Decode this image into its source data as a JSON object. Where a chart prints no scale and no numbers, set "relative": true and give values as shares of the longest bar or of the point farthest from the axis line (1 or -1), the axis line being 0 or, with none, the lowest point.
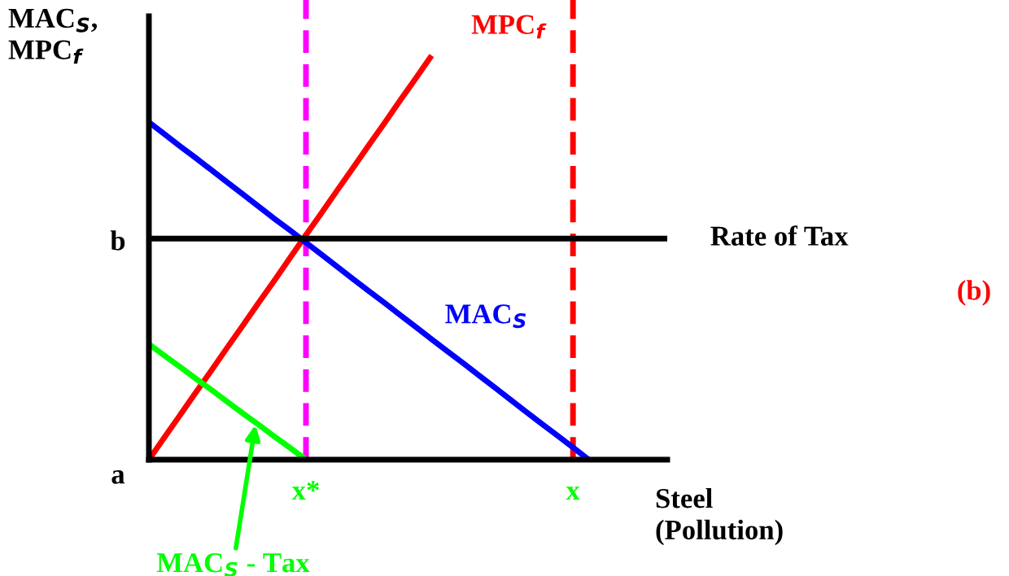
{
  "chart_data": {
    "type": "line",
    "relative": true,
    "xlabel": "Steel\n(Pollution)",
    "ylabel": "MAC$_{S}$,\nMPC$_{f}$",
    "categories": [
      null,
      null,
      null,
      null,
      null,
      null,
      null,
      null,
      null,
      null,
      "x*",
      null,
      null,
      null,
      null,
      null,
      null,
      null,
      null,
      null,
      null,
      null,
      null,
      null,
      null,
      null,
      null,
      "x",
      null,
      null,
      null,
      null,
      null,
      null
    ],
    "series": [
      {
        "name": "MPC$_{f}$",
        "color": "#ff0000",
        "values": [
          0,
          0.056,
          0.111,
          0.167,
          0.222,
          0.278,
          0.333,
          0.389,
          0.444,
          0.5,
          0.556,
          0.611,
          0.667,
          0.722,
          0.778,
          0.833,
          0.889,
          0.944,
          1,
          null,
          null,
          null,
          null,
          null,
          null,
          null,
          null,
          null,
          null,
          null,
          null,
          null,
          null,
          null
        ]
      },
      {
        "name": "MAC$_{S}$",
        "color": "#0000ff",
        "values": [
          0.835,
          0.805,
          0.775,
          0.746,
          0.716,
          0.686,
          0.656,
          0.626,
          0.596,
          0.567,
          0.537,
          0.507,
          0.477,
          0.447,
          0.417,
          0.388,
          0.358,
          0.328,
          0.298,
          0.268,
          0.239,
          0.209,
          0.179,
          0.149,
          0.119,
          0.089,
          0.06,
          0.03,
          0,
          null,
          null,
          null,
          null,
          null
        ]
      },
      {
        "name": "Rate of Tax",
        "color": "#000000",
        "values": [
          0.547,
          0.547,
          0.547,
          0.547,
          0.547,
          0.547,
          0.547,
          0.547,
          0.547,
          0.547,
          0.547,
          0.547,
          0.547,
          0.547,
          0.547,
          0.547,
          0.547,
          0.547,
          0.547,
          0.547,
          0.547,
          0.547,
          0.547,
          0.547,
          0.547,
          0.547,
          0.547,
          0.547,
          0.547,
          0.547,
          0.547,
          0.547,
          0.547,
          0.547
        ]
      },
      {
        "name": "MAC$_{S}$ - Tax",
        "color": "#00ff00",
        "values": [
          0.286,
          0.257,
          0.229,
          0.2,
          0.172,
          0.143,
          0.114,
          0.086,
          0.057,
          0.029,
          0,
          null,
          null,
          null,
          null,
          null,
          null,
          null,
          null,
          null,
          null,
          null,
          null,
          null,
          null,
          null,
          null,
          null,
          null,
          null,
          null,
          null,
          null,
          null
        ]
      }
    ],
    "ref_lines": [
      {
        "axis": "x",
        "value": "x*",
        "color": "#ff00ff",
        "line_style": "dashed"
      },
      {
        "axis": "x",
        "value": "x",
        "color": "#ff0000",
        "line_style": "dashed"
      }
    ],
    "annotations": [
      "a",
      "b",
      "(b)"
    ],
    "grid": false,
    "legend": false,
    "marker": "none",
    "line_style": "solid"
  }
}
